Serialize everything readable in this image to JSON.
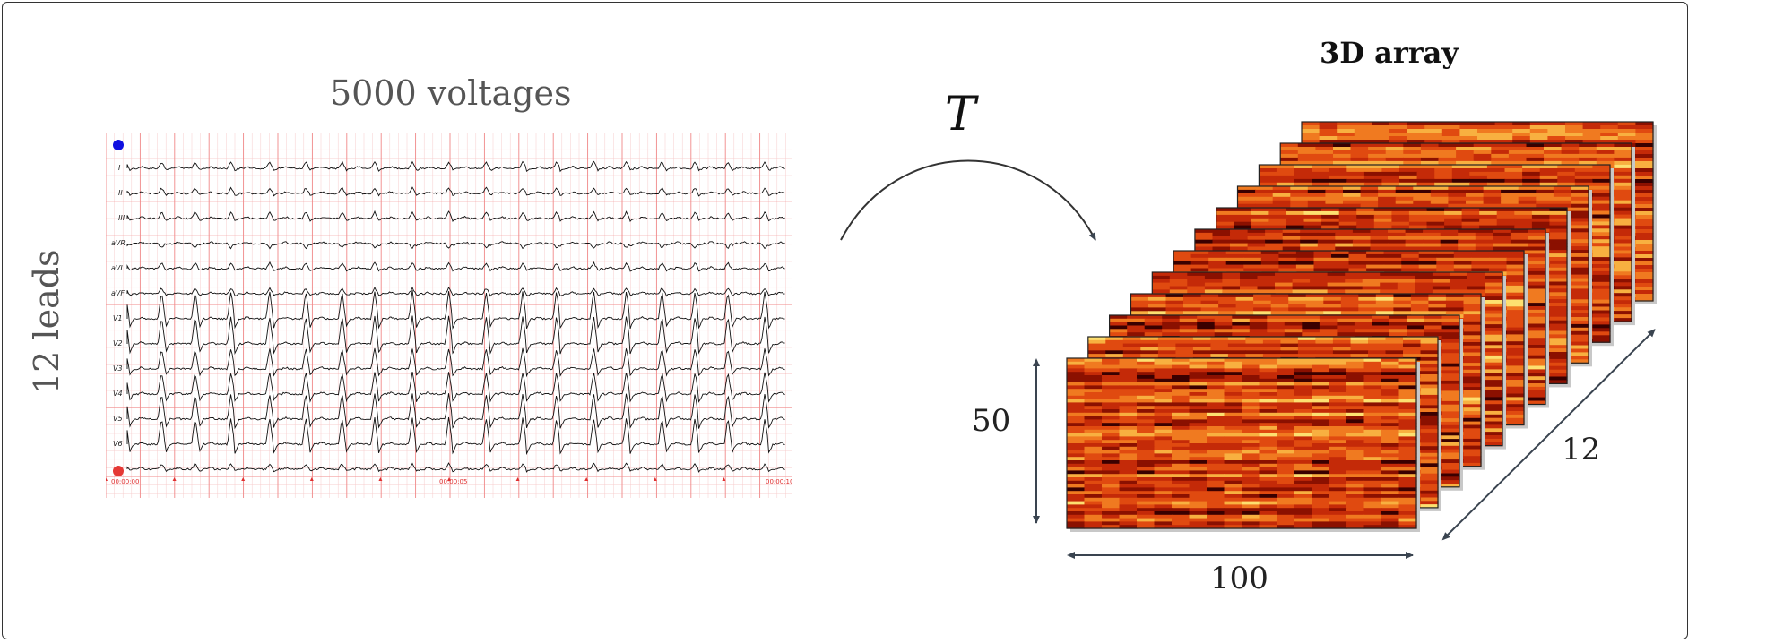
{
  "texts": {
    "voltages_title": "5000 voltages",
    "leads_title": "12 leads",
    "array_title": "3D array",
    "transform_symbol": "T",
    "dim_height": "50",
    "dim_width": "100",
    "dim_depth": "12"
  },
  "ecg": {
    "leads": [
      "I",
      "II",
      "III",
      "aVR",
      "aVL",
      "aVF",
      "V1",
      "V2",
      "V3",
      "V4",
      "V5",
      "V6"
    ],
    "time_labels": [
      "00:00:00",
      "00:00:05",
      "00:00:10"
    ],
    "marker_colors": [
      "#1010e0",
      "#e53935"
    ],
    "grid_color": "#f08a8a"
  },
  "heatmap": {
    "colormap": [
      "#3a0000",
      "#8b1000",
      "#c42a08",
      "#e04a10",
      "#f07a20",
      "#f8b040",
      "#fde070",
      "#fffbe0"
    ],
    "slices": 12
  }
}
